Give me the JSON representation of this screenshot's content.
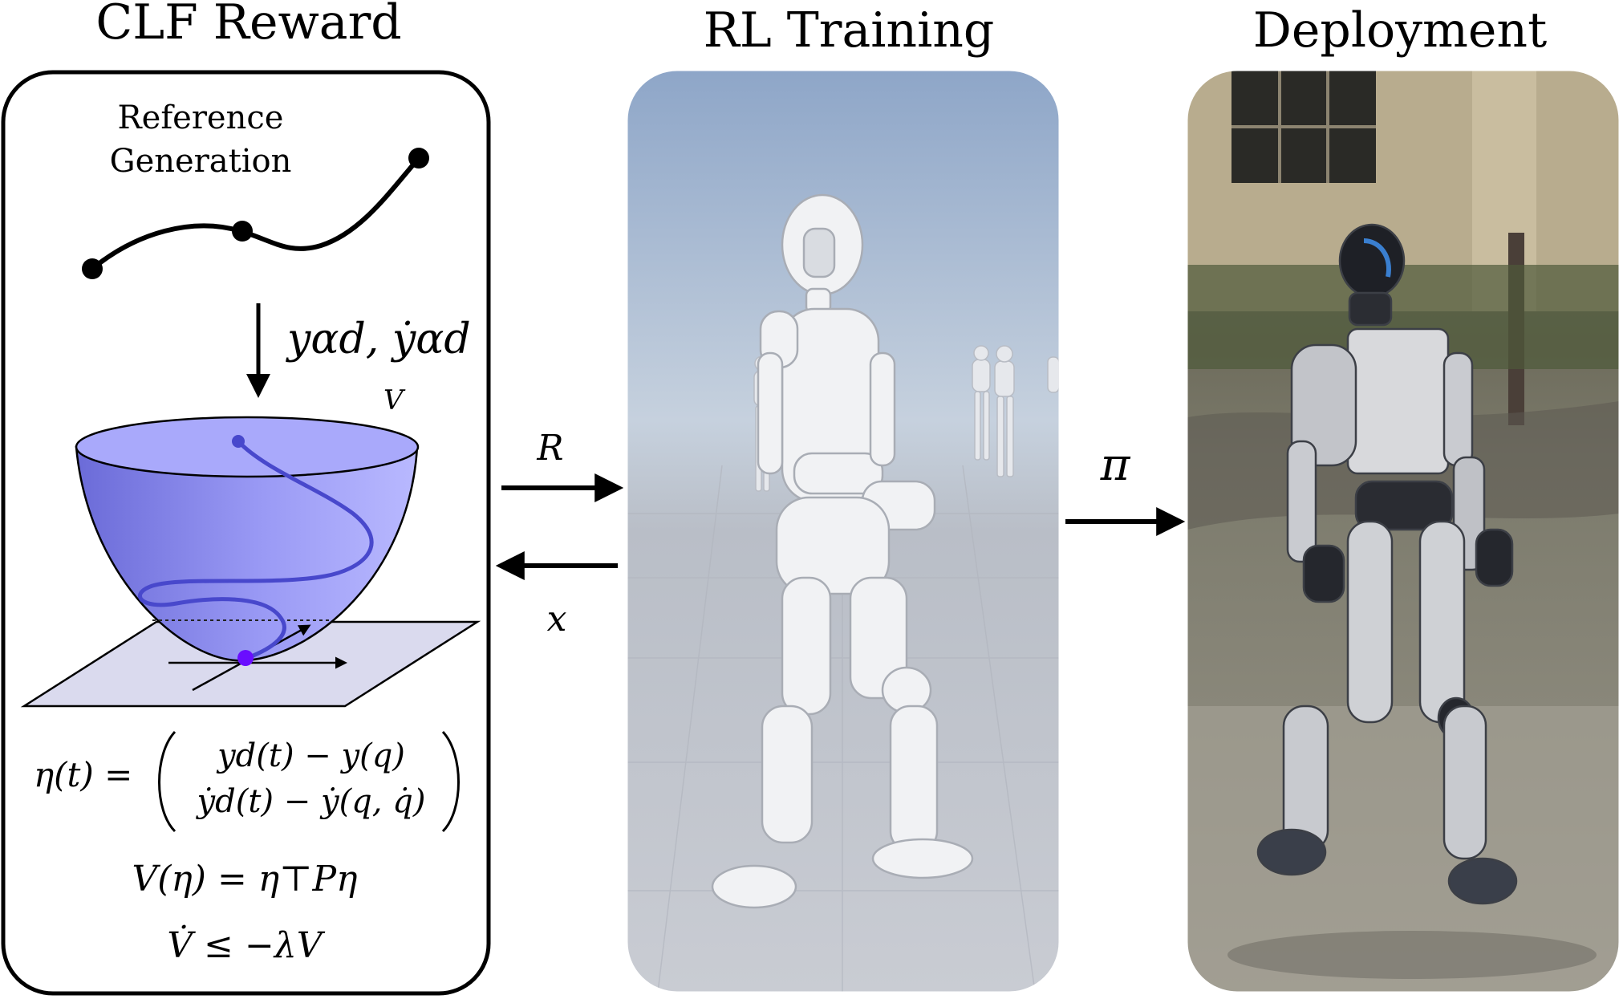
{
  "panels": {
    "clf": {
      "title": "CLF Reward",
      "ref_line1": "Reference",
      "ref_line2": "Generation",
      "signal_label": "yαd, ẏαd",
      "v_label": "V",
      "eta_lhs": "η(t) =",
      "eta_row1": "yd(t) − y(q)",
      "eta_row2": "ẏd(t) − ẏ(q, q̇)",
      "lyap_eq": "V(η) = η⊤Pη",
      "lyap_cond": "V̇ ≤ −λV"
    },
    "training": {
      "title": "RL Training"
    },
    "deployment": {
      "title": "Deployment"
    }
  },
  "arrows": {
    "reward": "R",
    "state": "x",
    "policy": "π"
  },
  "colors": {
    "bowl": "#8c8cf2",
    "bowl_dark": "#5454c4",
    "trajectory": "#4a4ad0",
    "sim_sky": "#9fb3cf",
    "sim_floor": "#c7cbd3",
    "real_bg": "#6c6a58"
  }
}
